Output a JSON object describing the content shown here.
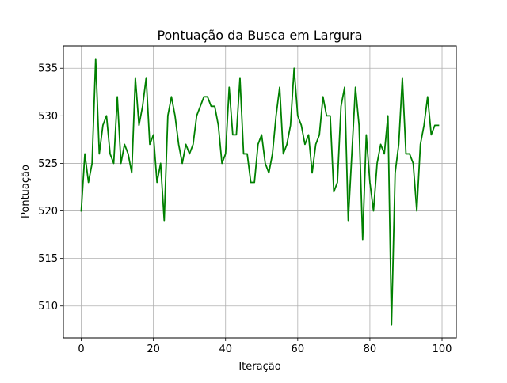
{
  "chart_data": {
    "type": "line",
    "title": "Pontuação da Busca em Largura",
    "xlabel": "Iteração",
    "ylabel": "Pontuação",
    "xlim": [
      -4.95,
      103.95
    ],
    "ylim": [
      506.65,
      537.35
    ],
    "xticks": [
      0,
      20,
      40,
      60,
      80,
      100
    ],
    "yticks": [
      510,
      515,
      520,
      525,
      530,
      535
    ],
    "grid": true,
    "line_color": "#008000",
    "series": [
      {
        "x": [
          0,
          1,
          2,
          3,
          4,
          5,
          6,
          7,
          8,
          9,
          10,
          11,
          12,
          13,
          14,
          15,
          16,
          17,
          18,
          19,
          20,
          21,
          22,
          23,
          24,
          25,
          26,
          27,
          28,
          29,
          30,
          31,
          32,
          33,
          34,
          35,
          36,
          37,
          38,
          39,
          40,
          41,
          42,
          43,
          44,
          45,
          46,
          47,
          48,
          49,
          50,
          51,
          52,
          53,
          54,
          55,
          56,
          57,
          58,
          59,
          60,
          61,
          62,
          63,
          64,
          65,
          66,
          67,
          68,
          69,
          70,
          71,
          72,
          73,
          74,
          75,
          76,
          77,
          78,
          79,
          80,
          81,
          82,
          83,
          84,
          85,
          86,
          87,
          88,
          89,
          90,
          91,
          92,
          93,
          94,
          95,
          96,
          97,
          98,
          99
        ],
        "y": [
          520,
          526,
          523,
          525,
          536,
          526,
          529,
          530,
          526,
          525,
          532,
          525,
          527,
          526,
          524,
          534,
          529,
          531,
          534,
          527,
          528,
          523,
          525,
          519,
          530,
          532,
          530,
          527,
          525,
          527,
          526,
          527,
          530,
          531,
          532,
          532,
          531,
          531,
          529,
          525,
          526,
          533,
          528,
          528,
          534,
          526,
          526,
          523,
          523,
          527,
          528,
          525,
          524,
          526,
          530,
          533,
          526,
          527,
          529,
          535,
          530,
          529,
          527,
          528,
          524,
          527,
          528,
          532,
          530,
          530,
          522,
          523,
          531,
          533,
          519,
          526,
          533,
          529,
          517,
          528,
          523,
          520,
          525,
          527,
          526,
          530,
          508,
          524,
          527,
          534,
          526,
          526,
          525,
          520,
          527,
          529,
          532,
          528,
          529,
          529
        ]
      }
    ]
  }
}
